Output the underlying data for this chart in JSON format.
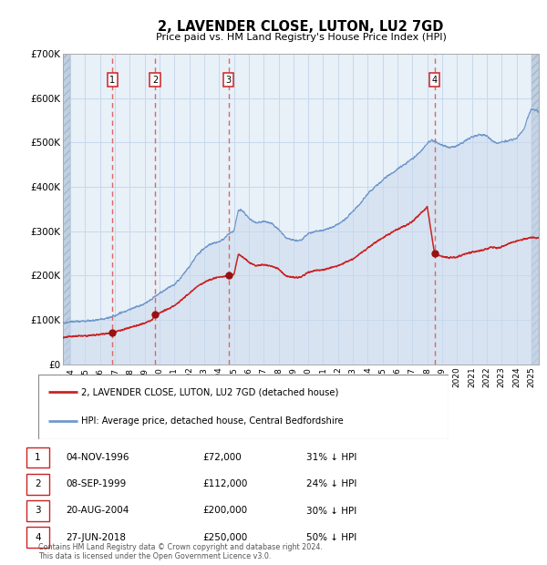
{
  "title": "2, LAVENDER CLOSE, LUTON, LU2 7GD",
  "subtitle": "Price paid vs. HM Land Registry's House Price Index (HPI)",
  "ylim": [
    0,
    700000
  ],
  "yticks": [
    0,
    100000,
    200000,
    300000,
    400000,
    500000,
    600000,
    700000
  ],
  "ytick_labels": [
    "£0",
    "£100K",
    "£200K",
    "£300K",
    "£400K",
    "£500K",
    "£600K",
    "£700K"
  ],
  "hpi_fill_color": "#c8d8ec",
  "hpi_line_color": "#7099cc",
  "sale_color": "#cc2222",
  "sale_marker_color": "#991111",
  "dashed_line_color": "#dd6666",
  "grid_color": "#c8d8ec",
  "bg_color": "#e8f0f8",
  "legend_label_sale": "2, LAVENDER CLOSE, LUTON, LU2 7GD (detached house)",
  "legend_label_hpi": "HPI: Average price, detached house, Central Bedfordshire",
  "sales": [
    {
      "num": 1,
      "date": "04-NOV-1996",
      "price": 72000,
      "pct": "31%",
      "x_year": 1996.84
    },
    {
      "num": 2,
      "date": "08-SEP-1999",
      "price": 112000,
      "pct": "24%",
      "x_year": 1999.69
    },
    {
      "num": 3,
      "date": "20-AUG-2004",
      "price": 200000,
      "pct": "30%",
      "x_year": 2004.64
    },
    {
      "num": 4,
      "date": "27-JUN-2018",
      "price": 250000,
      "pct": "50%",
      "x_year": 2018.49
    }
  ],
  "footer": "Contains HM Land Registry data © Crown copyright and database right 2024.\nThis data is licensed under the Open Government Licence v3.0.",
  "xmin": 1993.5,
  "xmax": 2025.5
}
